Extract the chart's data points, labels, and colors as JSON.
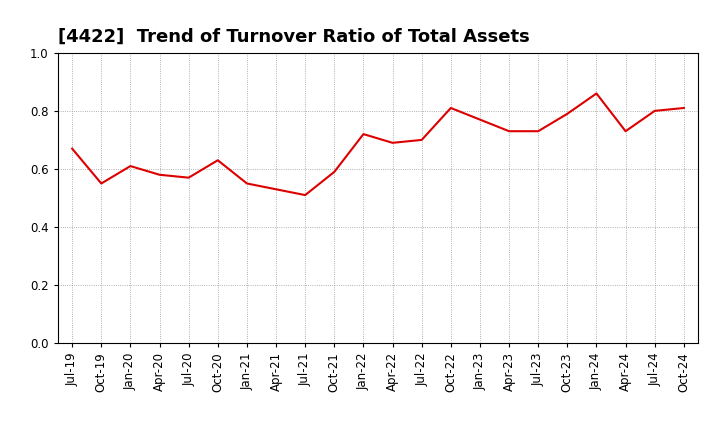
{
  "title": "[4422]  Trend of Turnover Ratio of Total Assets",
  "labels": [
    "Jul-19",
    "Oct-19",
    "Jan-20",
    "Apr-20",
    "Jul-20",
    "Oct-20",
    "Jan-21",
    "Apr-21",
    "Jul-21",
    "Oct-21",
    "Jan-22",
    "Apr-22",
    "Jul-22",
    "Oct-22",
    "Jan-23",
    "Apr-23",
    "Jul-23",
    "Oct-23",
    "Jan-24",
    "Apr-24",
    "Jul-24",
    "Oct-24"
  ],
  "values": [
    0.67,
    0.55,
    0.61,
    0.58,
    0.57,
    0.63,
    0.55,
    0.53,
    0.51,
    0.59,
    0.72,
    0.69,
    0.7,
    0.81,
    0.77,
    0.73,
    0.73,
    0.79,
    0.86,
    0.73,
    0.8,
    0.81
  ],
  "line_color": "#DD0000",
  "line_width": 1.5,
  "ylim": [
    0.0,
    1.0
  ],
  "yticks": [
    0.0,
    0.2,
    0.4,
    0.6,
    0.8,
    1.0
  ],
  "background_color": "#FFFFFF",
  "grid_color": "#999999",
  "title_fontsize": 13,
  "tick_fontsize": 8.5,
  "title_color": "#000000",
  "title_fontweight": "bold"
}
